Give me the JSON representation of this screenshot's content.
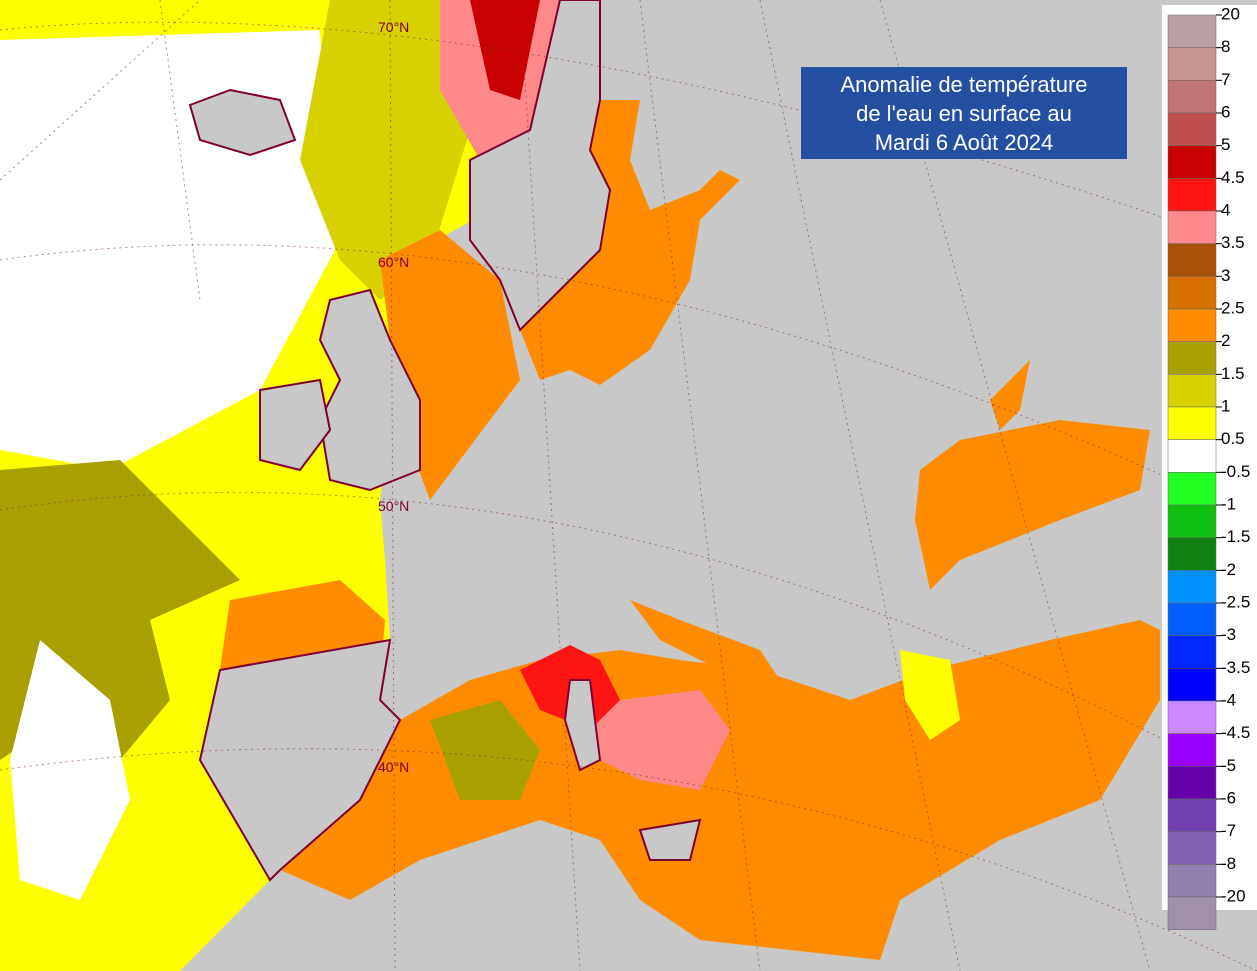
{
  "title": {
    "lines": [
      "Anomalie de température",
      "de l'eau en surface au",
      "Mardi 6 Août 2024"
    ]
  },
  "latitude_labels": [
    "70°N",
    "60°N",
    "50°N",
    "40°N"
  ],
  "legend": {
    "labels": [
      "20",
      "8",
      "7",
      "6",
      "5",
      "4.5",
      "4",
      "3.5",
      "3",
      "2.5",
      "2",
      "1.5",
      "1",
      "0.5",
      "-0.5",
      "-1",
      "-1.5",
      "-2",
      "-2.5",
      "-3",
      "-3.5",
      "-4",
      "-4.5",
      "-5",
      "-6",
      "-7",
      "-8",
      "-20"
    ],
    "colors": [
      "#b8a0a4",
      "#c89494",
      "#c07474",
      "#c05050",
      "#c80000",
      "#ff1414",
      "#ff8888",
      "#a85008",
      "#d87000",
      "#ff8c00",
      "#a8a000",
      "#d8d000",
      "#ffff00",
      "#ffffff",
      "#22ff22",
      "#10c010",
      "#108010",
      "#0090ff",
      "#0060ff",
      "#0028ff",
      "#0000ff",
      "#cc88ff",
      "#9900ff",
      "#6600aa",
      "#7040b0",
      "#8060b0",
      "#9080b0",
      "#a090a8"
    ]
  }
}
